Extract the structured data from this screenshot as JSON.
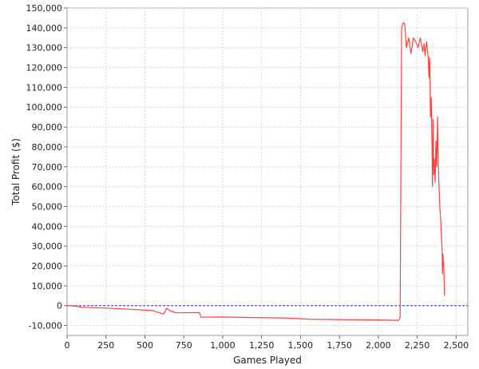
{
  "chart_data": {
    "type": "line",
    "title": "",
    "xlabel": "Games Played",
    "ylabel": "Total Profit ($)",
    "xlim": [
      0,
      2575
    ],
    "ylim": [
      -15000,
      150000
    ],
    "x_ticks": [
      0,
      250,
      500,
      750,
      1000,
      1250,
      1500,
      1750,
      2000,
      2250,
      2500
    ],
    "x_tick_labels": [
      "0",
      "250",
      "500",
      "750",
      "1,000",
      "1,250",
      "1,500",
      "1,750",
      "2,000",
      "2,250",
      "2,500"
    ],
    "y_ticks": [
      -10000,
      0,
      10000,
      20000,
      30000,
      40000,
      50000,
      60000,
      70000,
      80000,
      90000,
      100000,
      110000,
      120000,
      130000,
      140000,
      150000
    ],
    "y_tick_labels": [
      "-10,000",
      "0",
      "10,000",
      "20,000",
      "30,000",
      "40,000",
      "50,000",
      "60,000",
      "70,000",
      "80,000",
      "90,000",
      "100,000",
      "110,000",
      "120,000",
      "130,000",
      "140,000",
      "150,000"
    ],
    "grid": true,
    "zero_line": true,
    "series": [
      {
        "color": "#ff4040",
        "points": [
          [
            0,
            0
          ],
          [
            60,
            -300
          ],
          [
            100,
            -800
          ],
          [
            250,
            -1200
          ],
          [
            400,
            -1800
          ],
          [
            550,
            -2500
          ],
          [
            620,
            -4200
          ],
          [
            640,
            -1300
          ],
          [
            660,
            -2500
          ],
          [
            700,
            -3600
          ],
          [
            850,
            -3500
          ],
          [
            860,
            -5800
          ],
          [
            1000,
            -5700
          ],
          [
            1200,
            -6000
          ],
          [
            1400,
            -6200
          ],
          [
            1550,
            -6800
          ],
          [
            1750,
            -7000
          ],
          [
            2000,
            -7200
          ],
          [
            2130,
            -7400
          ],
          [
            2140,
            -6000
          ],
          [
            2150,
            140000
          ],
          [
            2160,
            142500
          ],
          [
            2170,
            142000
          ],
          [
            2180,
            130000
          ],
          [
            2195,
            135000
          ],
          [
            2210,
            127000
          ],
          [
            2225,
            135000
          ],
          [
            2240,
            133000
          ],
          [
            2255,
            130000
          ],
          [
            2270,
            135000
          ],
          [
            2285,
            128000
          ],
          [
            2295,
            132000
          ],
          [
            2300,
            126000
          ],
          [
            2310,
            133000
          ],
          [
            2320,
            125000
          ],
          [
            2325,
            115000
          ],
          [
            2330,
            125000
          ],
          [
            2335,
            95000
          ],
          [
            2340,
            105000
          ],
          [
            2345,
            78000
          ],
          [
            2348,
            60000
          ],
          [
            2352,
            94000
          ],
          [
            2356,
            66000
          ],
          [
            2360,
            74000
          ],
          [
            2365,
            62000
          ],
          [
            2370,
            83000
          ],
          [
            2375,
            70000
          ],
          [
            2380,
            95000
          ],
          [
            2385,
            72000
          ],
          [
            2390,
            60000
          ],
          [
            2395,
            50000
          ],
          [
            2400,
            44000
          ],
          [
            2405,
            35000
          ],
          [
            2410,
            28000
          ],
          [
            2412,
            16000
          ],
          [
            2415,
            26000
          ],
          [
            2418,
            20000
          ],
          [
            2420,
            22000
          ],
          [
            2425,
            5000
          ]
        ]
      }
    ]
  }
}
